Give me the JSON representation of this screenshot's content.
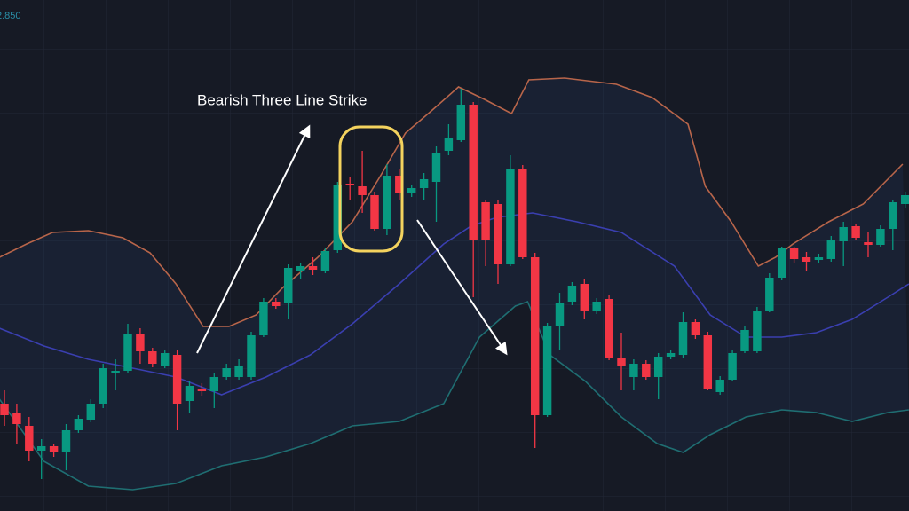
{
  "chart_data": {
    "type": "candlestick",
    "annotation": "Bearish Three Line Strike",
    "price_label": "2.850",
    "up_color": "#089981",
    "down_color": "#f23645",
    "xlim": [
      -0.36,
      73.31
    ],
    "ylim": [
      0,
      576
    ],
    "open": [
      121,
      111,
      96,
      68,
      73,
      66,
      91,
      103,
      121,
      156,
      158,
      199,
      180,
      164,
      176,
      124,
      138,
      135,
      151,
      151,
      151,
      198,
      236,
      234,
      271,
      276,
      271,
      294,
      369,
      366,
      356,
      318,
      378,
      358,
      364,
      371,
      406,
      418,
      458,
      348,
      346,
      278,
      386,
      286,
      108,
      208,
      236,
      256,
      226,
      239,
      173,
      151,
      166,
      151,
      174,
      176,
      213,
      198,
      134,
      148,
      180,
      180,
      226,
      263,
      296,
      286,
      283,
      284,
      304,
      321,
      303,
      300,
      318,
      346
    ],
    "high": [
      136,
      121,
      106,
      81,
      76,
      98,
      108,
      126,
      166,
      171,
      211,
      206,
      184,
      182,
      181,
      146,
      144,
      156,
      166,
      171,
      202,
      240,
      240,
      278,
      280,
      286,
      296,
      371,
      376,
      406,
      360,
      391,
      386,
      368,
      381,
      411,
      436,
      476,
      461,
      351,
      351,
      401,
      390,
      291,
      212,
      246,
      258,
      261,
      240,
      243,
      201,
      171,
      170,
      178,
      182,
      224,
      216,
      202,
      152,
      182,
      208,
      230,
      268,
      298,
      298,
      292,
      290,
      310,
      326,
      324,
      314,
      322,
      351,
      360
    ],
    "low": [
      96,
      76,
      56,
      36,
      61,
      46,
      88,
      100,
      116,
      136,
      156,
      166,
      162,
      161,
      91,
      111,
      130,
      116,
      148,
      148,
      148,
      196,
      228,
      216,
      261,
      266,
      268,
      291,
      351,
      336,
      316,
      311,
      351,
      354,
      351,
      326,
      401,
      416,
      241,
      276,
      256,
      276,
      284,
      71,
      106,
      181,
      232,
      216,
      222,
      170,
      136,
      136,
      148,
      126,
      171,
      173,
      194,
      136,
      131,
      146,
      178,
      178,
      224,
      260,
      280,
      271,
      280,
      281,
      276,
      305,
      286,
      298,
      294,
      341
    ],
    "close": [
      108,
      98,
      68,
      73,
      66,
      91,
      104,
      121,
      161,
      158,
      199,
      180,
      166,
      178,
      121,
      141,
      135,
      151,
      161,
      163,
      198,
      236,
      231,
      274,
      276,
      272,
      293,
      368,
      368,
      356,
      318,
      378,
      358,
      364,
      374,
      404,
      421,
      458,
      306,
      306,
      278,
      386,
      286,
      108,
      208,
      234,
      254,
      226,
      236,
      173,
      164,
      166,
      151,
      174,
      178,
      213,
      198,
      138,
      148,
      178,
      204,
      226,
      263,
      296,
      284,
      281,
      286,
      306,
      320,
      308,
      300,
      318,
      348,
      356
    ],
    "bands": [
      {
        "color": "#b8654a",
        "x": [
          -0.4,
          1.8,
          3.9,
          6.8,
          9.6,
          11.8,
          13.9,
          16.1,
          18.2,
          20.4,
          22.5,
          25.4,
          28.2,
          30.4,
          32.5,
          34.6,
          36.8,
          38.9,
          41.1,
          42.5,
          45.4,
          49.6,
          52.5,
          55.4,
          56.8,
          58.9,
          61.1,
          62.5,
          63.9,
          66.8,
          69.6,
          72.8
        ],
        "values": [
          286,
          301,
          314,
          316,
          308,
          291,
          256,
          208,
          208,
          221,
          251,
          286,
          326,
          376,
          426,
          451,
          478,
          464,
          448,
          486,
          488,
          481,
          466,
          436,
          366,
          326,
          276,
          286,
          301,
          326,
          346,
          391
        ]
      },
      {
        "color": "#3a3fb0",
        "x": [
          -0.4,
          3.2,
          6.8,
          10.4,
          13.9,
          17.6,
          21.2,
          24.8,
          28.2,
          32.0,
          35.6,
          37.8,
          39.9,
          42.8,
          46.4,
          50.0,
          54.3,
          57.2,
          60.1,
          63.0,
          65.8,
          68.7,
          71.6,
          73.3
        ],
        "values": [
          206,
          186,
          171,
          161,
          151,
          131,
          151,
          176,
          211,
          256,
          301,
          321,
          331,
          336,
          326,
          314,
          276,
          221,
          196,
          196,
          201,
          216,
          241,
          256
        ]
      },
      {
        "color": "#1f6e72",
        "x": [
          -0.4,
          3.2,
          6.8,
          10.4,
          13.9,
          17.6,
          21.2,
          24.8,
          28.2,
          32.0,
          35.6,
          38.5,
          41.4,
          42.4,
          44.2,
          47.1,
          50.0,
          52.9,
          55.0,
          57.2,
          60.1,
          63.0,
          65.8,
          68.7,
          71.6,
          73.3
        ],
        "values": [
          126,
          56,
          28,
          24,
          31,
          51,
          61,
          76,
          96,
          101,
          121,
          196,
          231,
          236,
          176,
          146,
          106,
          76,
          66,
          86,
          106,
          114,
          111,
          101,
          111,
          114
        ]
      }
    ]
  }
}
